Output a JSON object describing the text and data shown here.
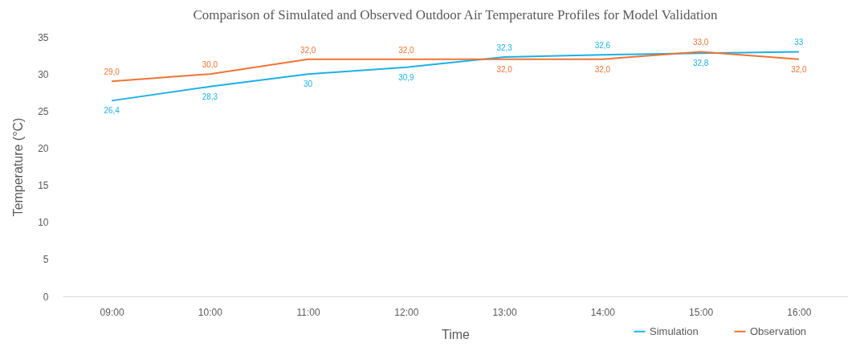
{
  "chart_data": {
    "type": "line",
    "title": "Comparison of Simulated and Observed Outdoor Air Temperature Profiles for Model Validation",
    "xlabel": "Time",
    "ylabel": "Temperature (°C)",
    "categories": [
      "09:00",
      "10:00",
      "11:00",
      "12:00",
      "13:00",
      "14:00",
      "15:00",
      "16:00"
    ],
    "series": [
      {
        "name": "Simulation",
        "color": "#1cb0e8",
        "values": [
          26.4,
          28.3,
          30,
          30.9,
          32.3,
          32.6,
          32.8,
          33
        ],
        "value_labels": [
          "26,4",
          "28,3",
          "30",
          "30,9",
          "32,3",
          "32,6",
          "32,8",
          "33"
        ]
      },
      {
        "name": "Observation",
        "color": "#ed7434",
        "values": [
          29,
          30,
          32,
          32,
          32,
          32,
          33,
          32
        ],
        "value_labels": [
          "29,0",
          "30,0",
          "32,0",
          "32,0",
          "32,0",
          "32,0",
          "33,0",
          "32,0"
        ]
      }
    ],
    "ylim": [
      0,
      35
    ],
    "yticks": [
      0,
      5,
      10,
      15,
      20,
      25,
      30,
      35
    ],
    "grid": false,
    "legend": "bottom",
    "marker": "none",
    "line_style": "solid"
  }
}
